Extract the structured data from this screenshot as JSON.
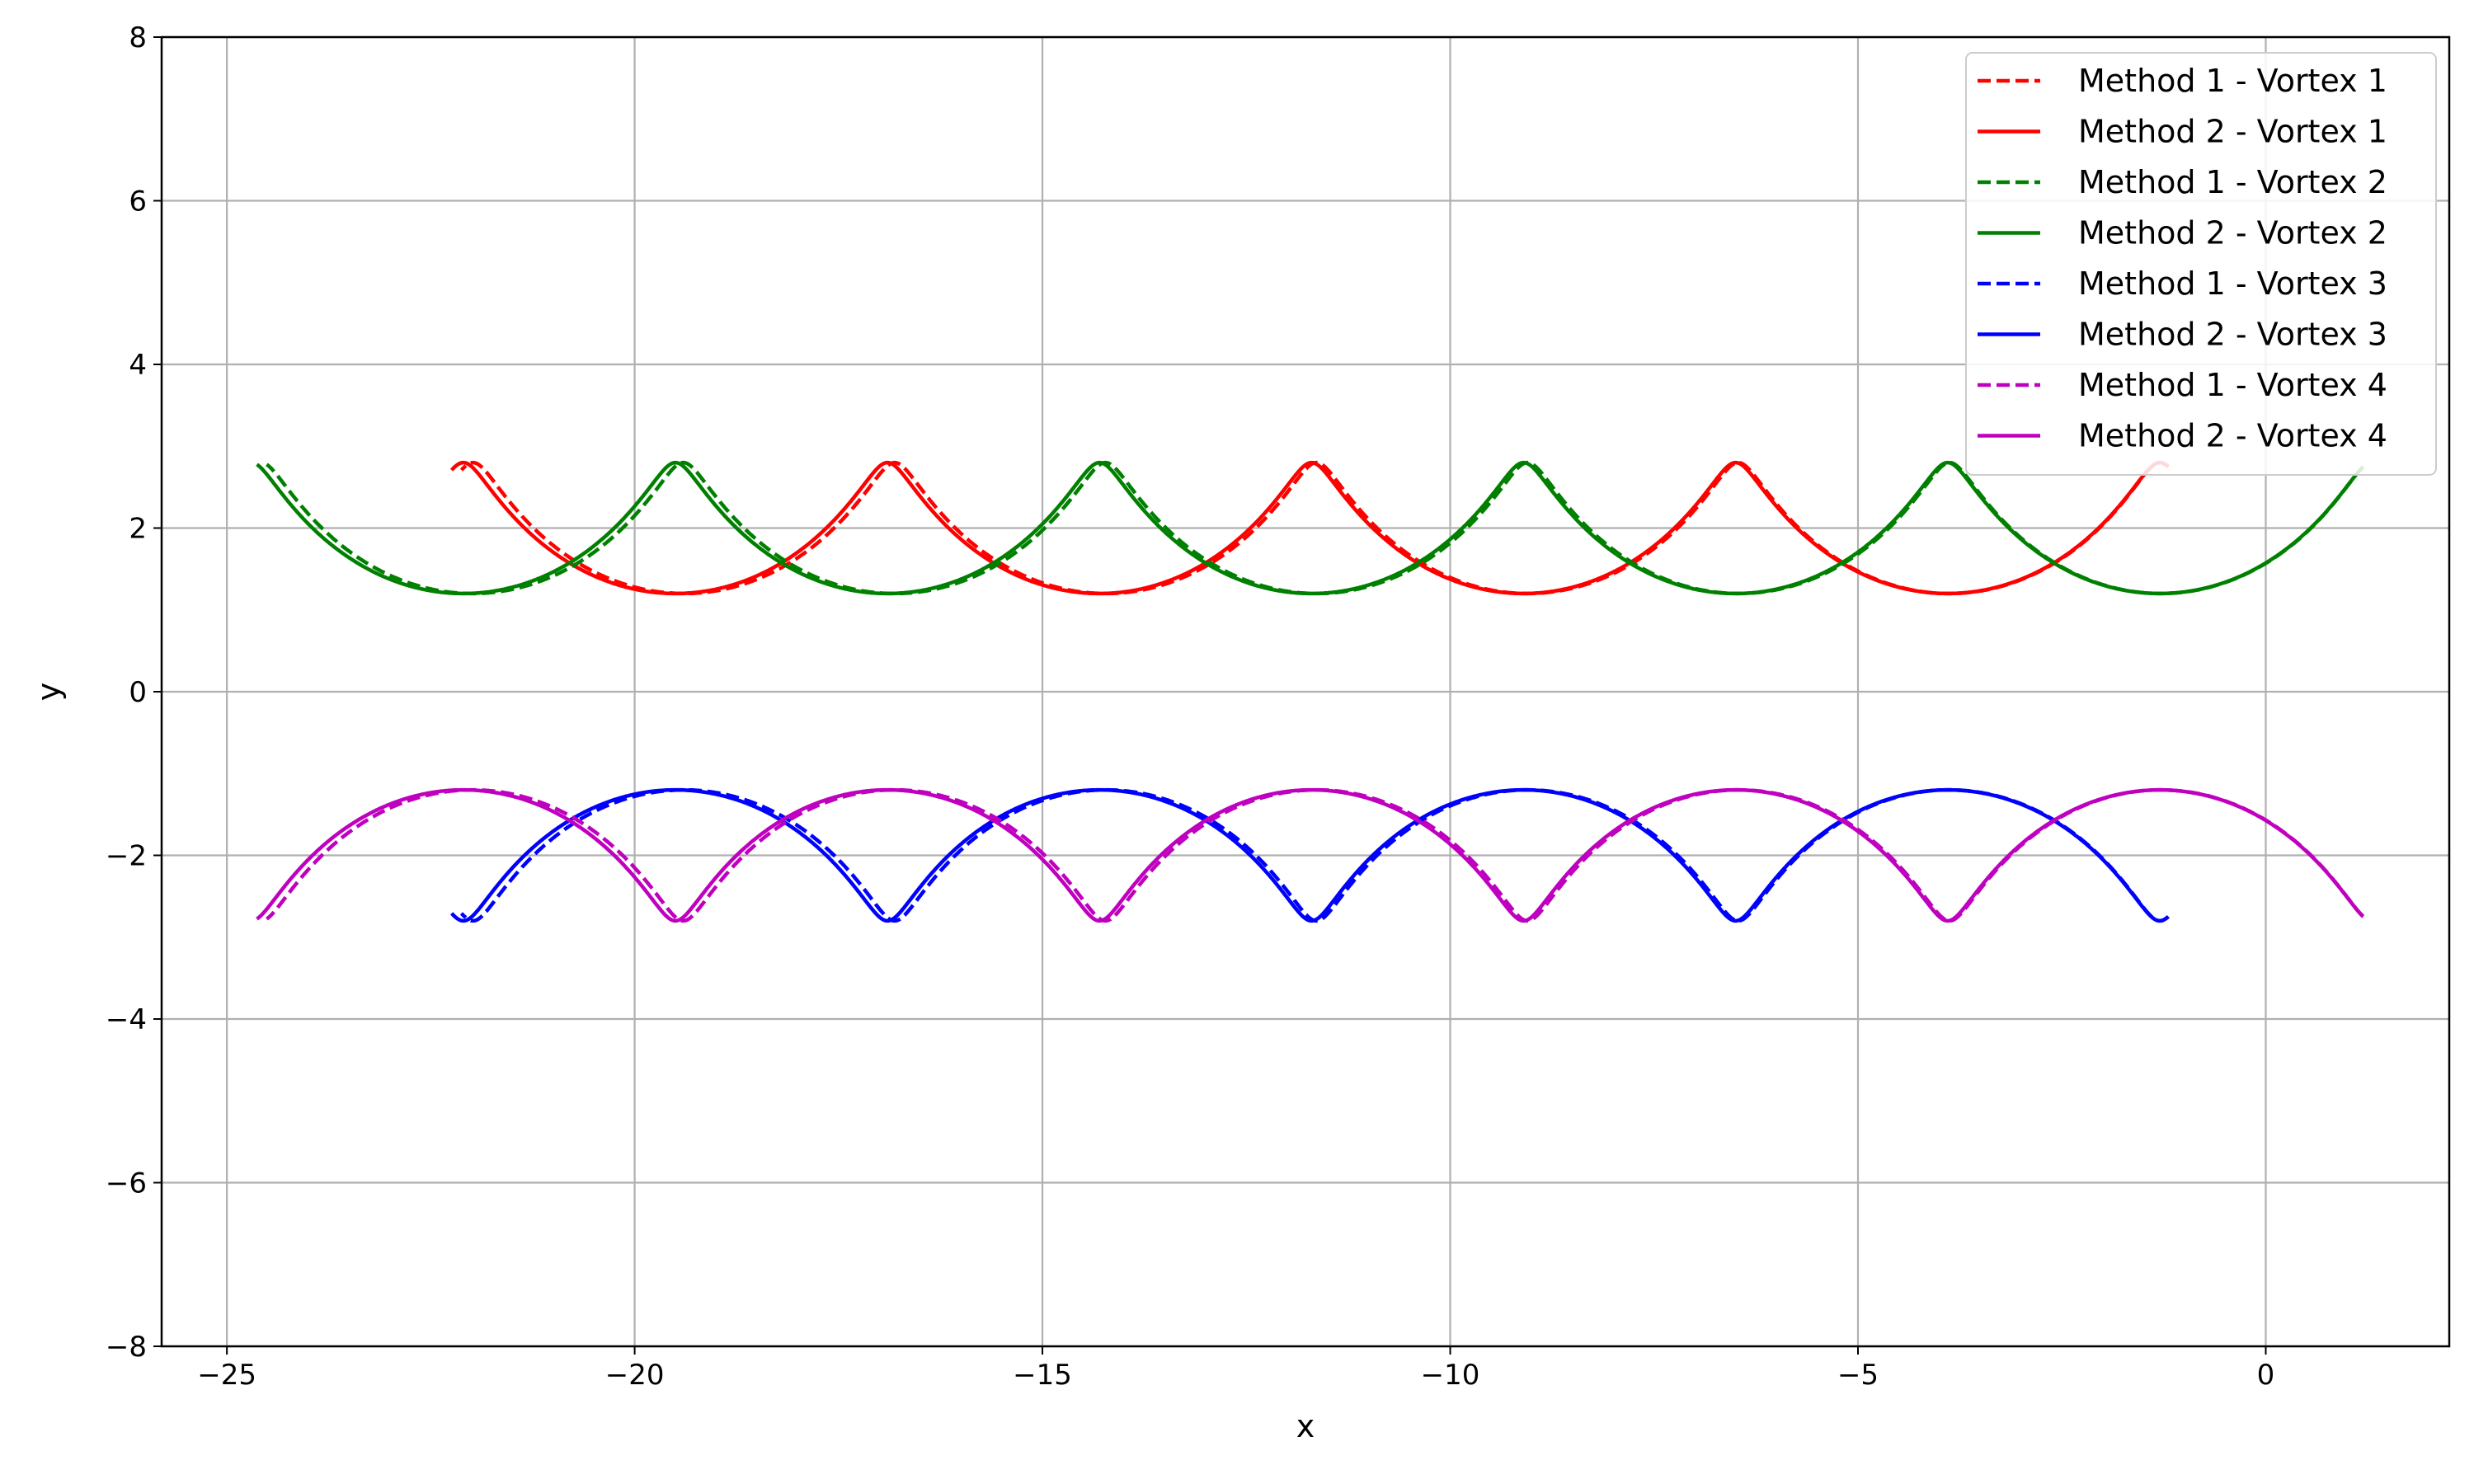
{
  "chart_data": {
    "type": "line",
    "title": "",
    "xlabel": "x",
    "ylabel": "y",
    "xlim": [
      -25.8,
      2.25
    ],
    "ylim": [
      -8,
      8
    ],
    "xticks": [
      -25,
      -20,
      -15,
      -10,
      -5,
      0
    ],
    "yticks": [
      -8,
      -6,
      -4,
      -2,
      0,
      2,
      4,
      6,
      8
    ],
    "grid": true,
    "legend_position": "top-right",
    "series": [
      {
        "name": "Method 1 - Vortex 1",
        "color": "#ff0000",
        "style": "dashed",
        "vortex": 1,
        "method": 1,
        "x_start": -1.0,
        "x_end": -22.5,
        "y_top": 2.8,
        "y_bottom": 1.2,
        "y_ends": 2.0
      },
      {
        "name": "Method 2 - Vortex 1",
        "color": "#ff0000",
        "style": "solid",
        "vortex": 1,
        "method": 2,
        "x_start": -1.0,
        "x_end": -22.5,
        "y_top": 2.8,
        "y_bottom": 1.2,
        "y_ends": 2.0
      },
      {
        "name": "Method 1 - Vortex 2",
        "color": "#008000",
        "style": "dashed",
        "vortex": 2,
        "method": 1,
        "x_start": 1.0,
        "x_end": -24.5,
        "y_top": 2.8,
        "y_bottom": 1.2,
        "y_ends": 2.0
      },
      {
        "name": "Method 2 - Vortex 2",
        "color": "#008000",
        "style": "solid",
        "vortex": 2,
        "method": 2,
        "x_start": 1.0,
        "x_end": -24.5,
        "y_top": 2.8,
        "y_bottom": 1.2,
        "y_ends": 2.0
      },
      {
        "name": "Method 1 - Vortex 3",
        "color": "#0000ff",
        "style": "dashed",
        "vortex": 3,
        "method": 1,
        "x_start": -1.0,
        "x_end": -22.5,
        "y_top": -2.8,
        "y_bottom": -1.2,
        "y_ends": -2.0
      },
      {
        "name": "Method 2 - Vortex 3",
        "color": "#0000ff",
        "style": "solid",
        "vortex": 3,
        "method": 2,
        "x_start": -1.0,
        "x_end": -22.5,
        "y_top": -2.8,
        "y_bottom": -1.2,
        "y_ends": -2.0
      },
      {
        "name": "Method 1 - Vortex 4",
        "color": "#bf00bf",
        "style": "dashed",
        "vortex": 4,
        "method": 1,
        "x_start": 1.0,
        "x_end": -24.5,
        "y_top": -2.8,
        "y_bottom": -1.2,
        "y_ends": -2.0
      },
      {
        "name": "Method 2 - Vortex 4",
        "color": "#bf00bf",
        "style": "solid",
        "vortex": 4,
        "method": 2,
        "x_start": 1.0,
        "x_end": -24.5,
        "y_top": -2.8,
        "y_bottom": -1.2,
        "y_ends": -2.0
      }
    ],
    "loop_centers_vortex_1_3": [
      -1.3,
      -6.5,
      -11.7,
      -16.9,
      -22.1
    ],
    "loop_centers_vortex_2_4": [
      -3.9,
      -9.1,
      -14.3,
      -19.5
    ],
    "trough_centers_vortex_1_3": [
      -3.9,
      -9.1,
      -14.3,
      -19.5
    ],
    "trough_centers_vortex_2_4": [
      -1.3,
      -6.5,
      -11.7,
      -16.9,
      -22.1
    ]
  }
}
